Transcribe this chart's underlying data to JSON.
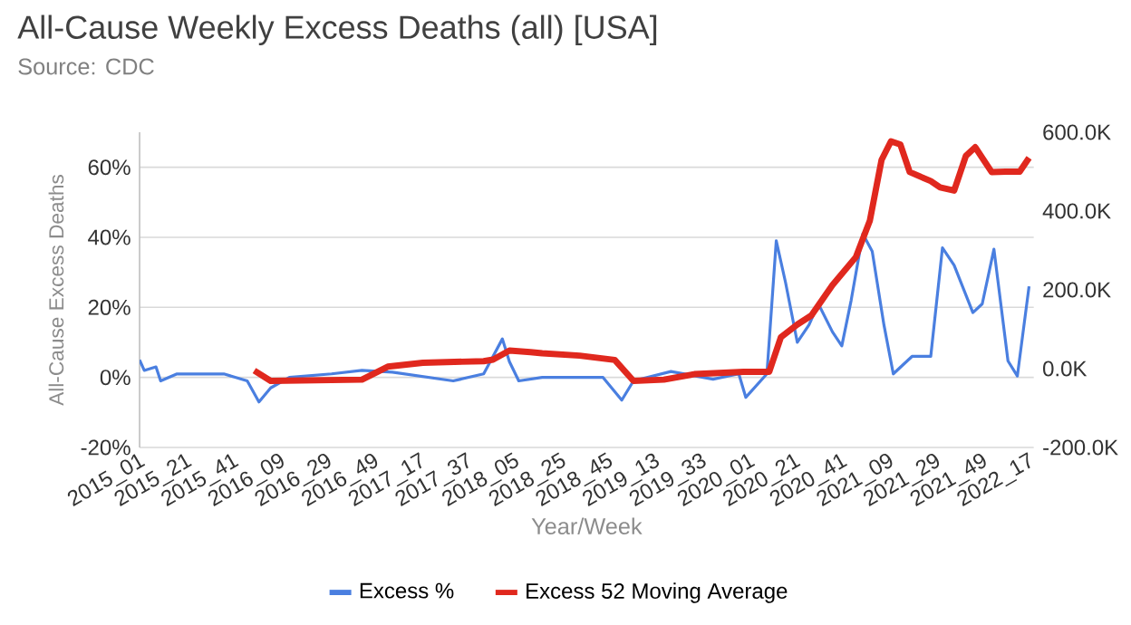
{
  "chart_data": {
    "type": "line",
    "title": "All-Cause Weekly Excess Deaths (all) [USA]",
    "subtitle": "Source: CDC",
    "xlabel": "Year/Week",
    "ylabel": "All-Cause Excess Deaths",
    "xlim": [
      "2015-01-04",
      "2022-05-01"
    ],
    "xticks": [
      {
        "value": "2015-01-04",
        "label": "2015_01"
      },
      {
        "value": "2015-05-24",
        "label": "2015_21"
      },
      {
        "value": "2015-10-11",
        "label": "2015_41"
      },
      {
        "value": "2016-02-28",
        "label": "2016_09"
      },
      {
        "value": "2016-07-17",
        "label": "2016_29"
      },
      {
        "value": "2016-12-04",
        "label": "2016_49"
      },
      {
        "value": "2017-04-23",
        "label": "2017_17"
      },
      {
        "value": "2017-09-10",
        "label": "2017_37"
      },
      {
        "value": "2018-01-28",
        "label": "2018_05"
      },
      {
        "value": "2018-06-17",
        "label": "2018_25"
      },
      {
        "value": "2018-11-04",
        "label": "2018_45"
      },
      {
        "value": "2019-03-24",
        "label": "2019_13"
      },
      {
        "value": "2019-08-11",
        "label": "2019_33"
      },
      {
        "value": "2020-01-02",
        "label": "2020_01"
      },
      {
        "value": "2020-05-17",
        "label": "2020_21"
      },
      {
        "value": "2020-10-04",
        "label": "2020_41"
      },
      {
        "value": "2021-02-21",
        "label": "2021_09"
      },
      {
        "value": "2021-07-11",
        "label": "2021_29"
      },
      {
        "value": "2021-11-28",
        "label": "2021_49"
      },
      {
        "value": "2022-04-17",
        "label": "2022_17"
      }
    ],
    "ylim": [
      -20,
      70
    ],
    "yticks": [
      {
        "value": -20,
        "label": "-20%"
      },
      {
        "value": 0,
        "label": "0%"
      },
      {
        "value": 20,
        "label": "20%"
      },
      {
        "value": 40,
        "label": "40%"
      },
      {
        "value": 60,
        "label": "60%"
      }
    ],
    "y2lim": [
      -200000,
      600000
    ],
    "y2ticks": [
      {
        "value": -200000,
        "label": "-200.0K"
      },
      {
        "value": 0,
        "label": "0.0K"
      },
      {
        "value": 200000,
        "label": "200.0K"
      },
      {
        "value": 400000,
        "label": "400.0K"
      },
      {
        "value": 600000,
        "label": "600.0K"
      }
    ],
    "grid": "y",
    "legend": "bottom",
    "series": [
      {
        "name": "Excess %",
        "color": "#4a7fe0",
        "axis": "y",
        "x": [
          "2015-01-04",
          "2015-01-18",
          "2015-02-22",
          "2015-03-08",
          "2015-04-26",
          "2015-09-13",
          "2015-11-22",
          "2015-12-27",
          "2016-01-31",
          "2016-03-27",
          "2016-07-31",
          "2016-10-30",
          "2017-01-29",
          "2017-07-30",
          "2017-10-29",
          "2017-11-26",
          "2017-12-24",
          "2018-01-14",
          "2018-02-11",
          "2018-04-22",
          "2018-10-21",
          "2018-12-16",
          "2019-01-20",
          "2019-05-12",
          "2019-09-15",
          "2019-12-01",
          "2019-12-22",
          "2020-02-23",
          "2020-03-22",
          "2020-04-19",
          "2020-05-24",
          "2020-06-28",
          "2020-07-26",
          "2020-09-06",
          "2020-10-04",
          "2020-11-01",
          "2020-12-06",
          "2021-01-03",
          "2021-02-07",
          "2021-03-07",
          "2021-05-02",
          "2021-06-27",
          "2021-08-01",
          "2021-09-05",
          "2021-10-31",
          "2021-11-28",
          "2022-01-02",
          "2022-02-13",
          "2022-03-13",
          "2022-04-17"
        ],
        "values": [
          5,
          2,
          3,
          -1,
          1,
          1,
          -1,
          -7,
          -3,
          0,
          1,
          2,
          1.5,
          -1,
          1,
          6,
          11,
          4.5,
          -1,
          0,
          0,
          -6.5,
          -1,
          1.7,
          -0.5,
          1,
          -5.7,
          1,
          39,
          27,
          10,
          15,
          21,
          13,
          9,
          22,
          41,
          36,
          15,
          1,
          6,
          6,
          37,
          32,
          18.5,
          21,
          36.6,
          4.7,
          0.4,
          26
        ]
      },
      {
        "name": "Excess 52 Moving Average",
        "color": "#e0281e",
        "axis": "y2",
        "x": [
          "2015-12-13",
          "2016-01-31",
          "2016-10-30",
          "2017-01-15",
          "2017-04-30",
          "2017-10-29",
          "2017-11-26",
          "2018-01-14",
          "2018-03-18",
          "2018-04-22",
          "2018-08-12",
          "2018-11-25",
          "2019-01-20",
          "2019-04-21",
          "2019-07-21",
          "2019-12-15",
          "2020-03-01",
          "2020-04-05",
          "2020-05-24",
          "2020-07-05",
          "2020-09-06",
          "2020-11-15",
          "2020-12-27",
          "2021-01-31",
          "2021-02-28",
          "2021-03-28",
          "2021-04-25",
          "2021-06-27",
          "2021-07-25",
          "2021-09-05",
          "2021-10-10",
          "2021-11-07",
          "2021-12-26",
          "2022-02-06",
          "2022-03-20",
          "2022-04-17"
        ],
        "values": [
          -5000,
          -31000,
          -28000,
          5000,
          15000,
          19000,
          23000,
          46000,
          42000,
          39000,
          33000,
          22000,
          -31000,
          -28000,
          -14000,
          -8000,
          -8000,
          80000,
          112000,
          135000,
          212000,
          283000,
          376000,
          530000,
          577000,
          569000,
          499000,
          476000,
          460000,
          452000,
          540000,
          562000,
          499000,
          500000,
          500000,
          535000
        ]
      }
    ]
  }
}
